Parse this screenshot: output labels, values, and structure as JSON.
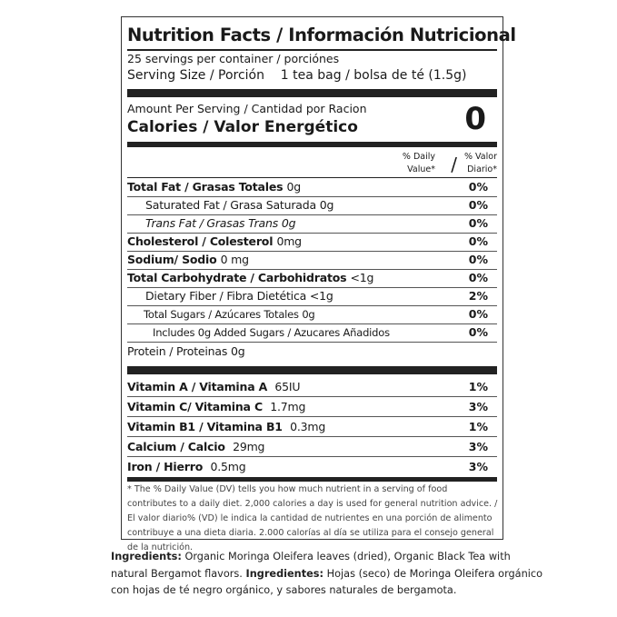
{
  "title": "Nutrition Facts / Información Nutricional",
  "servings": "25 servings per container / porciónes",
  "serving_size_label": "Serving Size / Porción",
  "serving_size_value": "1 tea bag / bolsa de té (1.5g)",
  "amount_per_serving": "Amount Per Serving / Cantidad por Racion",
  "calories_label": "Calories / Valor Energético",
  "calories_value": "0",
  "dv_header_en": "% Daily Value*",
  "dv_header_slash": "/",
  "dv_header_es": "% Valor Diario*",
  "nutrients": [
    {
      "label": "Total Fat / Grasas Totales",
      "value": "0g",
      "pct": "0%"
    },
    {
      "label": "Saturated Fat / Grasa Saturada",
      "value": "0g",
      "pct": "0%"
    },
    {
      "label": "Trans Fat / Grasas Trans",
      "value": "0g",
      "pct": "0%"
    },
    {
      "label": "Cholesterol / Colesterol",
      "value": "0mg",
      "pct": "0%"
    },
    {
      "label": "Sodium/ Sodio",
      "value": "0 mg",
      "pct": "0%"
    },
    {
      "label": "Total Carbohydrate / Carbohidratos",
      "value": "<1g",
      "pct": "0%"
    },
    {
      "label": "Dietary Fiber / Fibra Dietética",
      "value": "<1g",
      "pct": "2%"
    },
    {
      "label": "Total Sugars / Azúcares Totales",
      "value": "0g",
      "pct": "0%"
    },
    {
      "label": "Includes 0g Added Sugars / Azucares Añadidos",
      "value": "",
      "pct": "0%"
    },
    {
      "label": "Protein / Proteinas",
      "value": "0g",
      "pct": ""
    }
  ],
  "vitamins": [
    {
      "label": "Vitamin A / Vitamina A",
      "value": "65IU",
      "pct": "1%"
    },
    {
      "label": "Vitamin C/ Vitamina C",
      "value": "1.7mg",
      "pct": "3%"
    },
    {
      "label": "Vitamin B1 / Vitamina B1",
      "value": "0.3mg",
      "pct": "1%"
    },
    {
      "label": "Calcium / Calcio",
      "value": "29mg",
      "pct": "3%"
    },
    {
      "label": "Iron / Hierro",
      "value": "0.5mg",
      "pct": "3%"
    }
  ],
  "footnote": "* The % Daily Value (DV) tells you how much nutrient in a serving of food contributes to a daily diet. 2,000 calories a day is used for general nutrition advice. / El valor diario% (VD) le indica la cantidad de nutrientes en una porción de alimento contribuye a una dieta diaria. 2.000 calorías al día se utiliza para el consejo general de la nutrición.",
  "ingredients_label": "Ingredients:",
  "ingredients_text": "Organic Moringa Oleifera leaves (dried), Organic Black Tea with natural Bergamot flavors.",
  "ingredientes_label": "Ingredientes:",
  "ingredientes_text": "Hojas (seco) de Moringa Oleifera orgánico con hojas de té negro orgánico, y sabores naturales de bergamota."
}
